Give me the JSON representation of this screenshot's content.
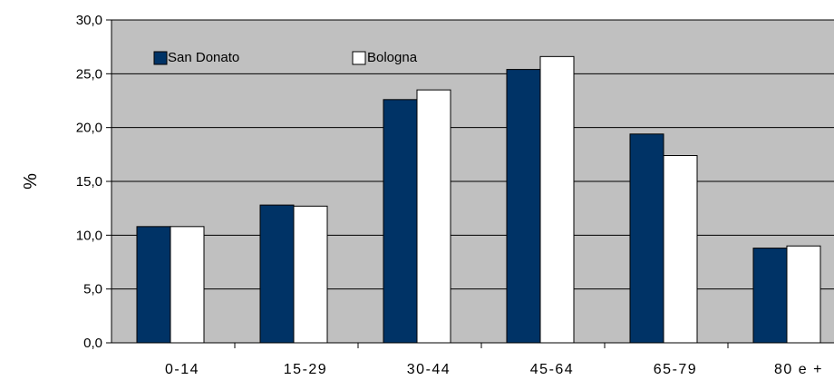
{
  "chart_data": {
    "type": "bar",
    "title": "",
    "xlabel": "",
    "ylabel": "%",
    "ylim": [
      0,
      30
    ],
    "yticks": [
      "0,0",
      "5,0",
      "10,0",
      "15,0",
      "20,0",
      "25,0",
      "30,0"
    ],
    "categories": [
      "0-14",
      "15-29",
      "30-44",
      "45-64",
      "65-79",
      "80 e +"
    ],
    "series": [
      {
        "name": "San Donato",
        "values": [
          10.8,
          12.8,
          22.6,
          25.4,
          19.4,
          8.8
        ],
        "color": "#003366"
      },
      {
        "name": "Bologna",
        "values": [
          10.8,
          12.7,
          23.5,
          26.6,
          17.4,
          9.0
        ],
        "color": "#ffffff"
      }
    ],
    "plot_background": "#c0c0c0",
    "grid": true,
    "legend": "top-left"
  }
}
